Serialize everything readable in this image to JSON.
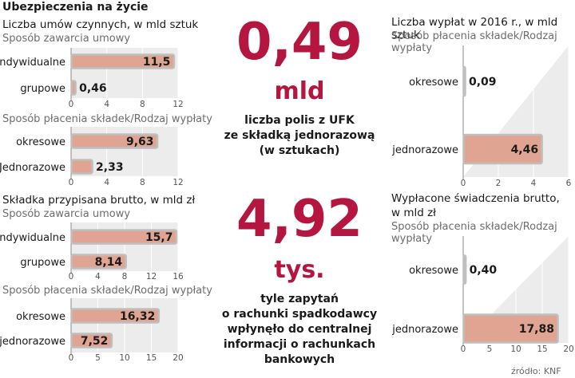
{
  "header": {
    "title": "Ubezpieczenia na życie",
    "source": "źródło: KNF"
  },
  "center": {
    "stat1": {
      "value": "0,49",
      "unit": "mld",
      "caption": [
        "liczba polis z UFK",
        "ze składką jednorazową",
        "(w sztukach)"
      ]
    },
    "stat2": {
      "value": "4,92",
      "unit": "tys.",
      "caption": [
        "tyle zapytań",
        "o rachunki spadkodawcy",
        "wpłynęło do centralnej",
        "informacji o rachunkach",
        "bankowych"
      ]
    }
  },
  "left": {
    "section1": {
      "title": "Liczba umów czynnych, w mld sztuk",
      "subtitle": "Sposób zawarcia umowy"
    },
    "section1b": {
      "subtitle": "Sposób płacenia składek/Rodzaj wypłaty"
    },
    "section2": {
      "title": "Składka przypisana brutto, w mld zł",
      "subtitle": "Sposób zawarcia umowy"
    },
    "section2b": {
      "subtitle": "Sposób płacenia składek/Rodzaj wypłaty"
    }
  },
  "right": {
    "section1": {
      "title": "Liczba wypłat w 2016 r., w mld sztuk",
      "subtitle": "Sposób płacenia składek/Rodzaj wypłaty"
    },
    "section2": {
      "title": [
        "Wypłacone świadczenia brutto,",
        "w mld zł"
      ],
      "subtitle": "Sposób płacenia składek/Rodzaj wypłaty"
    }
  },
  "colors": {
    "bar": "#e0a592",
    "bar_border": "#bfbfbf",
    "background_panel": "#ececec",
    "accent": "#b4163f"
  },
  "chart_data": [
    {
      "id": "c1",
      "type": "bar",
      "orientation": "horizontal",
      "categories": [
        "indywidualne",
        "grupowe"
      ],
      "values": [
        11.5,
        0.46
      ],
      "value_labels": [
        "11,5",
        "0,46"
      ],
      "xlim": [
        0,
        12
      ],
      "ticks": [
        0,
        4,
        8,
        12
      ]
    },
    {
      "id": "c2",
      "type": "bar",
      "orientation": "horizontal",
      "categories": [
        "okresowe",
        "Jednorazowe"
      ],
      "values": [
        9.63,
        2.33
      ],
      "value_labels": [
        "9,63",
        "2,33"
      ],
      "xlim": [
        0,
        12
      ],
      "ticks": [
        0,
        4,
        8,
        12
      ]
    },
    {
      "id": "c3",
      "type": "bar",
      "orientation": "horizontal",
      "categories": [
        "Indywidualne",
        "grupowe"
      ],
      "values": [
        15.7,
        8.14
      ],
      "value_labels": [
        "15,7",
        "8,14"
      ],
      "xlim": [
        0,
        16
      ],
      "ticks": [
        0,
        4,
        8,
        12,
        16
      ]
    },
    {
      "id": "c4",
      "type": "bar",
      "orientation": "horizontal",
      "categories": [
        "okresowe",
        "jednorazowe"
      ],
      "values": [
        16.32,
        7.52
      ],
      "value_labels": [
        "16,32",
        "7,52"
      ],
      "xlim": [
        0,
        20
      ],
      "ticks": [
        0,
        5,
        10,
        15,
        20
      ]
    },
    {
      "id": "c5",
      "type": "bar",
      "orientation": "horizontal",
      "categories": [
        "okresowe",
        "jednorazowe"
      ],
      "values": [
        0.09,
        4.46
      ],
      "value_labels": [
        "0,09",
        "4,46"
      ],
      "xlim": [
        0,
        6
      ],
      "ticks": [
        0,
        2,
        4,
        6
      ]
    },
    {
      "id": "c6",
      "type": "bar",
      "orientation": "horizontal",
      "categories": [
        "okresowe",
        "jednorazowe"
      ],
      "values": [
        0.4,
        17.88
      ],
      "value_labels": [
        "0,40",
        "17,88"
      ],
      "xlim": [
        0,
        20
      ],
      "ticks": [
        0,
        5,
        10,
        15,
        20
      ]
    }
  ]
}
